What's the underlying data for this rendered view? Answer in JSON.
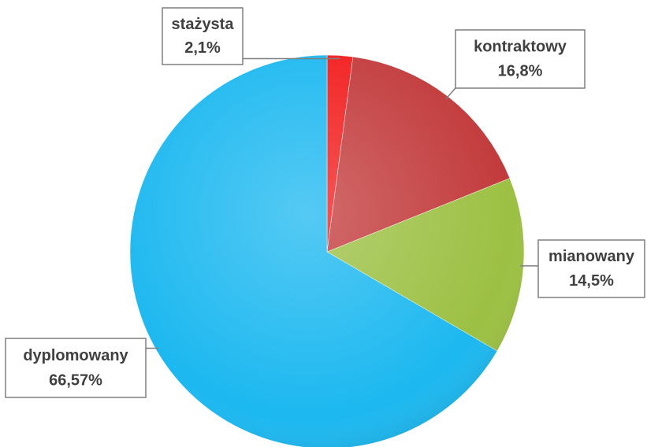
{
  "chart_data": {
    "type": "pie",
    "categories": [
      "stażysta",
      "kontraktowy",
      "mianowany",
      "dyplomowany"
    ],
    "values": [
      2.1,
      16.8,
      14.5,
      66.57
    ],
    "value_labels": [
      "2,1%",
      "16,8%",
      "14,5%",
      "66,57%"
    ],
    "colors": [
      "#f21c1c",
      "#c23a3b",
      "#9cc043",
      "#1cb8f0"
    ]
  }
}
